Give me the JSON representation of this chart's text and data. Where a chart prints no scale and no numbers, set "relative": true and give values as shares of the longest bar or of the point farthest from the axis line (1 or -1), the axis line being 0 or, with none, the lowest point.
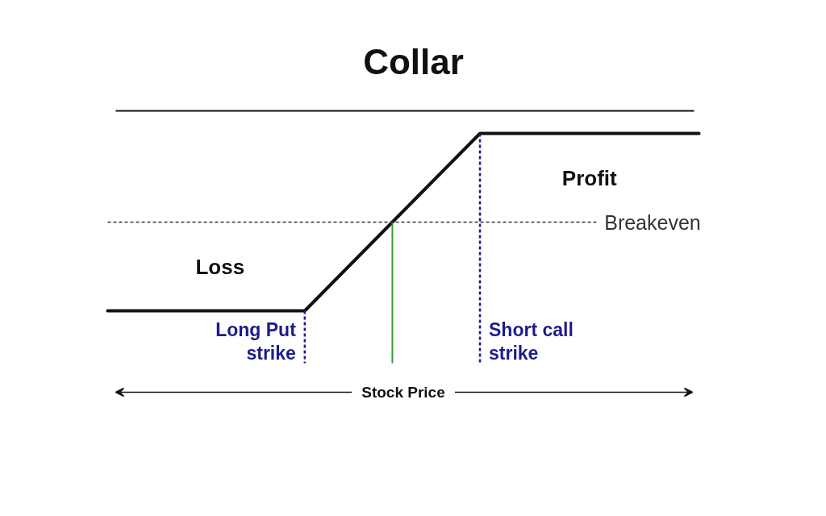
{
  "chart_data": {
    "type": "line",
    "title": "Collar",
    "xlabel": "Stock Price",
    "relative": true,
    "tick_labels": false,
    "categories": [
      null,
      null,
      null,
      null,
      null,
      null,
      null,
      null,
      null,
      null,
      null,
      null,
      null,
      null,
      null,
      null,
      null,
      null,
      null,
      null,
      null,
      null,
      null,
      null,
      null,
      null,
      null,
      null
    ],
    "series": [
      {
        "color": "#111111",
        "values": [
          -1,
          -1,
          -1,
          -1,
          -1,
          -1,
          -1,
          -1,
          -1,
          -1,
          -0.75,
          -0.5,
          -0.25,
          0,
          0.25,
          0.5,
          0.75,
          1,
          1,
          1,
          1,
          1,
          1,
          1,
          1,
          1,
          1,
          1
        ]
      }
    ],
    "ref_lines": [
      {
        "axis": "y",
        "value": 0,
        "label": "Breakeven",
        "color": "#333333",
        "line_style": "dotted"
      }
    ],
    "annotations": [
      "Profit",
      "Loss",
      "Long Put strike",
      "Short call strike"
    ]
  }
}
